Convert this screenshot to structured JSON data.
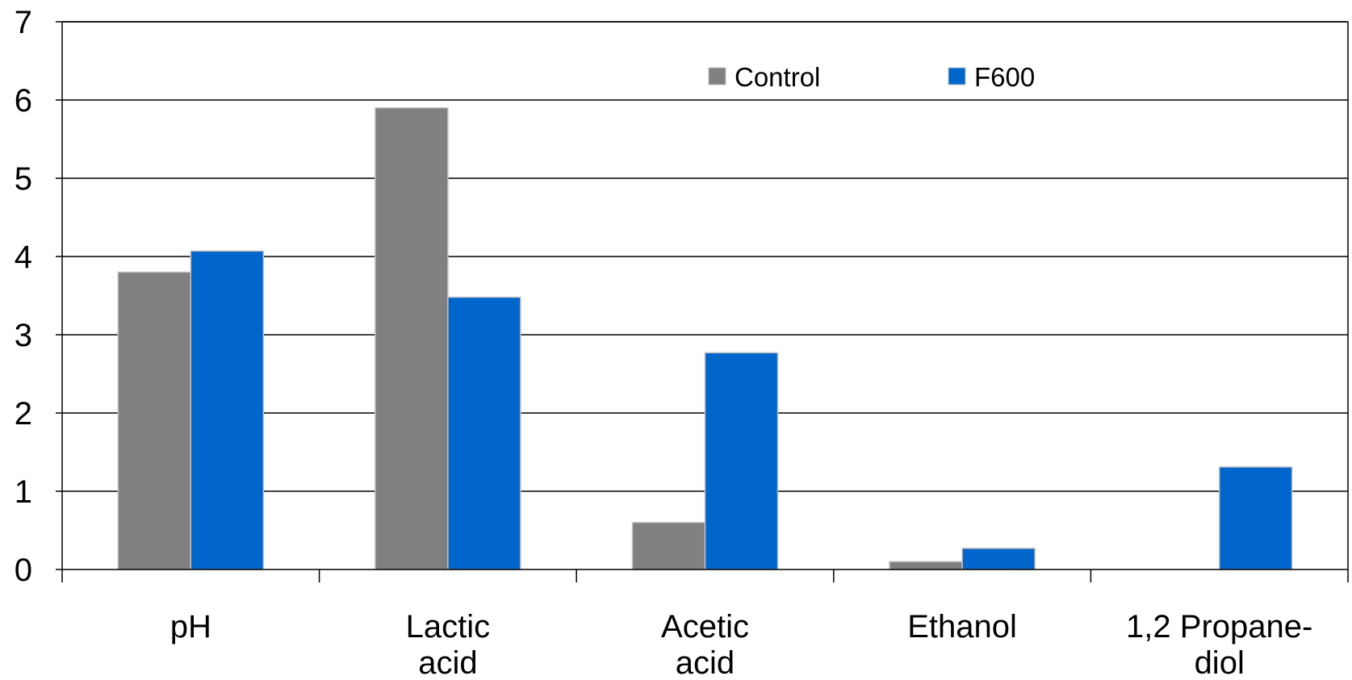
{
  "chart_data": {
    "type": "bar",
    "categories": [
      [
        "pH"
      ],
      [
        "Lactic",
        "acid"
      ],
      [
        "Acetic",
        "acid"
      ],
      [
        "Ethanol"
      ],
      [
        "1,2 Propane-",
        "diol"
      ]
    ],
    "series": [
      {
        "name": "Control",
        "color": "#808080",
        "values": [
          3.8,
          5.9,
          0.6,
          0.1,
          0
        ]
      },
      {
        "name": "F600",
        "color": "#0066CC",
        "values": [
          4.07,
          3.48,
          2.77,
          0.27,
          1.31
        ]
      }
    ],
    "ylim": [
      0,
      7
    ],
    "yticks": [
      "0",
      "1",
      "2",
      "3",
      "4",
      "5",
      "6",
      "7"
    ],
    "grid": true,
    "legend_position": "top-center",
    "title": "",
    "xlabel": "",
    "ylabel": ""
  }
}
